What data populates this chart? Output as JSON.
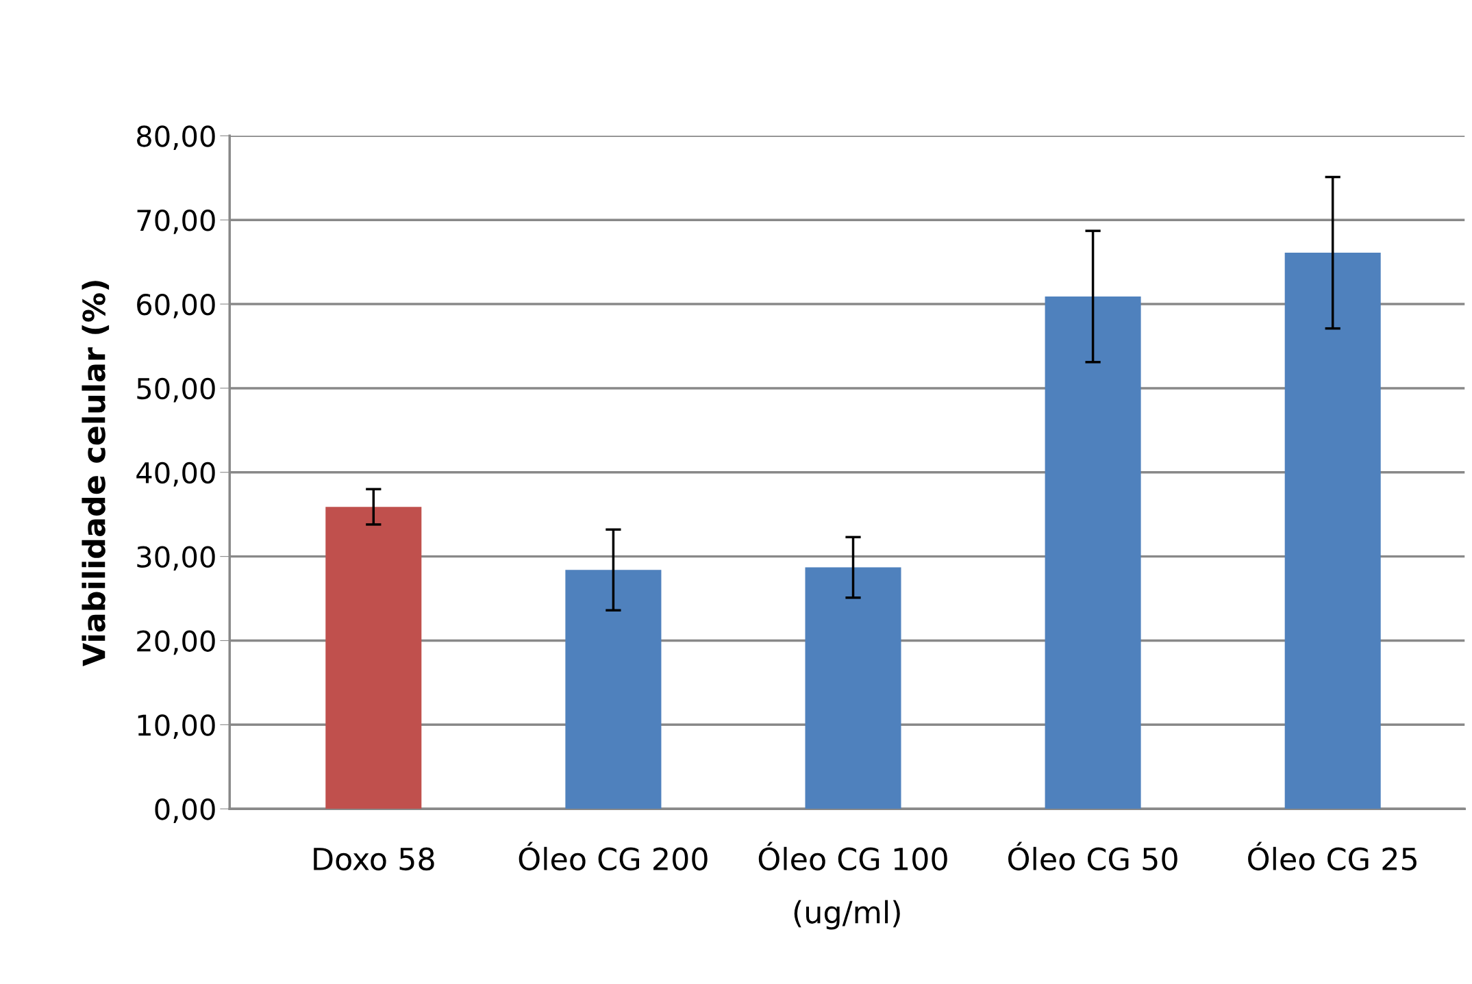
{
  "chart_data": {
    "type": "bar",
    "categories": [
      "Doxo 58",
      "Óleo CG 200",
      "Óleo CG 100",
      "Óleo CG 50",
      "Óleo CG 25"
    ],
    "values": [
      35.9,
      28.4,
      28.7,
      60.9,
      66.1
    ],
    "errors": [
      2.1,
      4.8,
      3.6,
      7.8,
      9.0
    ],
    "colors": [
      "#c0504d",
      "#4f81bd",
      "#4f81bd",
      "#4f81bd",
      "#4f81bd"
    ],
    "xlabel": "(ug/ml)",
    "ylabel": "Viabilidade celular (%)",
    "ylim": [
      0,
      80
    ],
    "yticks": [
      {
        "value": 0,
        "label": "0,00"
      },
      {
        "value": 10,
        "label": "10,00"
      },
      {
        "value": 20,
        "label": "20,00"
      },
      {
        "value": 30,
        "label": "30,00"
      },
      {
        "value": 40,
        "label": "40,00"
      },
      {
        "value": 50,
        "label": "50,00"
      },
      {
        "value": 60,
        "label": "60,00"
      },
      {
        "value": 70,
        "label": "70,00"
      },
      {
        "value": 80,
        "label": "80,00"
      }
    ],
    "grid": "y"
  }
}
